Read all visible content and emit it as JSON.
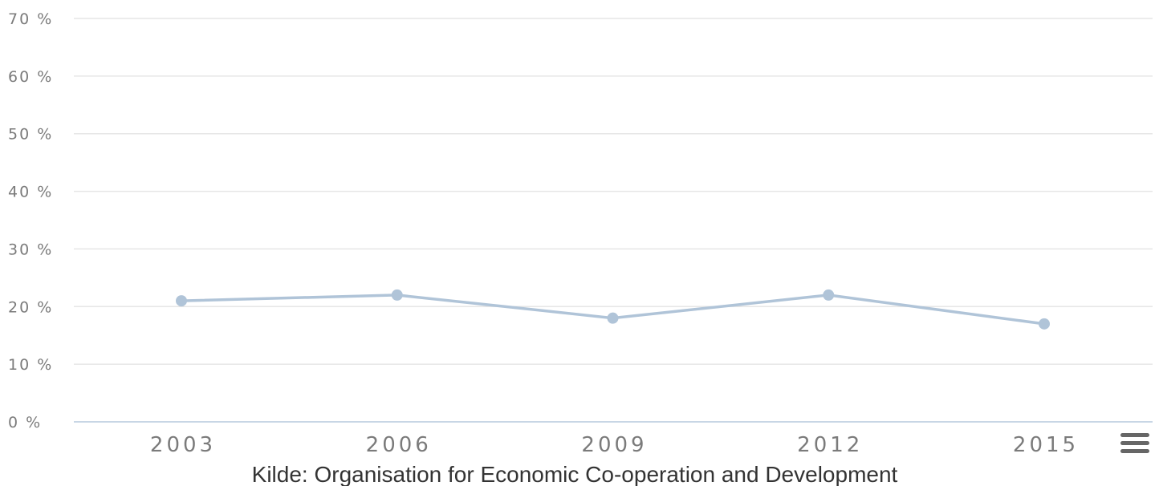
{
  "chart_data": {
    "type": "line",
    "x": [
      "2003",
      "2006",
      "2009",
      "2012",
      "2015"
    ],
    "series": [
      {
        "values": [
          21,
          22,
          18,
          22,
          17
        ],
        "color": "#b0c4d8"
      }
    ],
    "ylim": [
      0,
      70
    ],
    "yticks": [
      0,
      10,
      20,
      30,
      40,
      50,
      60,
      70
    ],
    "ytick_labels": [
      "0 %",
      "10 %",
      "20 %",
      "30 %",
      "40 %",
      "50 %",
      "60 %",
      "70 %"
    ],
    "grid": true,
    "source": "Kilde: Organisation for Economic Co-operation and Development"
  },
  "colors": {
    "grid": "#e6e6e6",
    "axis": "#c8d6e5",
    "line": "#b0c4d8",
    "text": "#7b7b7b"
  },
  "menu": {
    "icon": "hamburger-icon"
  }
}
